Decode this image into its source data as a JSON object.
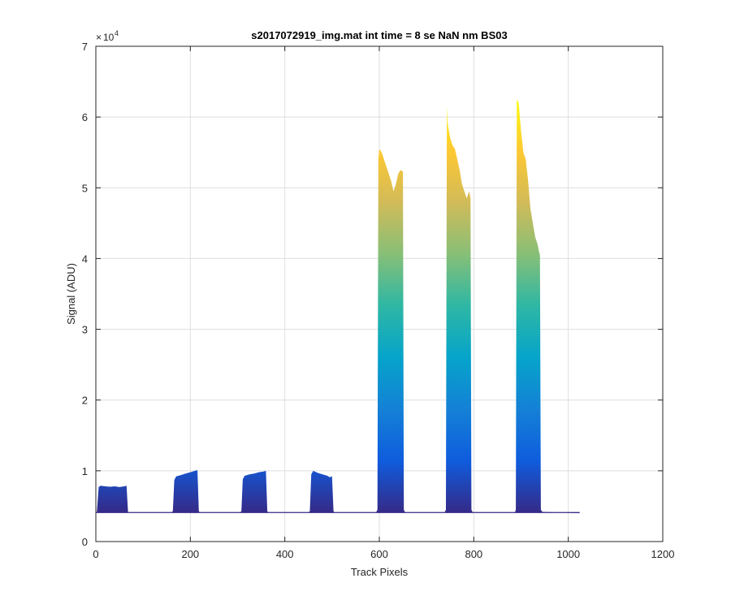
{
  "chart_data": {
    "type": "area",
    "title": "s2017072919_img.mat int time = 8 se  NaN nm BS03",
    "xlabel": "Track Pixels",
    "ylabel": "Signal (ADU)",
    "xlim": [
      0,
      1200
    ],
    "ylim": [
      0,
      70000
    ],
    "xticks": [
      0,
      200,
      400,
      600,
      800,
      1000,
      1200
    ],
    "xtick_labels": [
      "0",
      "200",
      "400",
      "600",
      "800",
      "1000",
      "1200"
    ],
    "yticks": [
      0,
      10000,
      20000,
      30000,
      40000,
      50000,
      60000,
      70000
    ],
    "ytick_labels": [
      "0",
      "1",
      "2",
      "3",
      "4",
      "5",
      "6",
      "7"
    ],
    "y_exponent_base": "10",
    "y_exponent_power": "4",
    "grid": true,
    "colormap": "parula",
    "colormap_colors": [
      "#352a87",
      "#0f5cdd",
      "#1481d6",
      "#06a4ca",
      "#2eb7a4",
      "#87bf77",
      "#d1bb59",
      "#fec832",
      "#f9fb0e"
    ],
    "baseline": 4100,
    "x_end": 1024,
    "series": [
      {
        "x": [
          0,
          2,
          6,
          10,
          20,
          30,
          40,
          50,
          60,
          65,
          68,
          70,
          75,
          100,
          140,
          160,
          163,
          166,
          170,
          180,
          190,
          200,
          210,
          215,
          218,
          220,
          225,
          260,
          290,
          305,
          308,
          311,
          315,
          325,
          335,
          345,
          355,
          360,
          363,
          365,
          370,
          400,
          440,
          450,
          453,
          456,
          460,
          470,
          480,
          490,
          495,
          500,
          503,
          505,
          510,
          540,
          580,
          593,
          596,
          598,
          600,
          605,
          610,
          615,
          620,
          625,
          630,
          635,
          640,
          645,
          650,
          652,
          654,
          656,
          660,
          700,
          730,
          738,
          741,
          743,
          745,
          750,
          755,
          760,
          765,
          770,
          775,
          780,
          785,
          790,
          793,
          795,
          797,
          800,
          840,
          880,
          885,
          887,
          889,
          891,
          895,
          900,
          905,
          910,
          915,
          920,
          925,
          930,
          935,
          938,
          940,
          942,
          945,
          980,
          1024
        ],
        "y": [
          4100,
          4100,
          7700,
          7900,
          7800,
          7750,
          7800,
          7700,
          7800,
          7900,
          4200,
          4100,
          4100,
          4100,
          4100,
          4100,
          4300,
          8700,
          9200,
          9400,
          9600,
          9800,
          10000,
          10100,
          4300,
          4100,
          4100,
          4100,
          4100,
          4100,
          4300,
          8800,
          9300,
          9500,
          9600,
          9800,
          9900,
          10000,
          4300,
          4100,
          4100,
          4100,
          4100,
          4100,
          4300,
          9500,
          10000,
          9700,
          9500,
          9300,
          9100,
          9200,
          4300,
          4100,
          4100,
          4100,
          4100,
          4100,
          4500,
          54000,
          55500,
          55000,
          54000,
          53000,
          52000,
          51000,
          49500,
          50500,
          52000,
          52500,
          52300,
          4500,
          4200,
          4100,
          4100,
          4100,
          4100,
          4100,
          4500,
          61500,
          59000,
          57000,
          56000,
          55500,
          54000,
          52500,
          50500,
          49500,
          48500,
          49500,
          48600,
          4500,
          4200,
          4100,
          4100,
          4100,
          4100,
          4100,
          4500,
          62500,
          62000,
          58000,
          55000,
          54000,
          51000,
          47000,
          45000,
          43000,
          42000,
          41000,
          40500,
          4500,
          4200,
          4100,
          4000
        ]
      }
    ]
  }
}
